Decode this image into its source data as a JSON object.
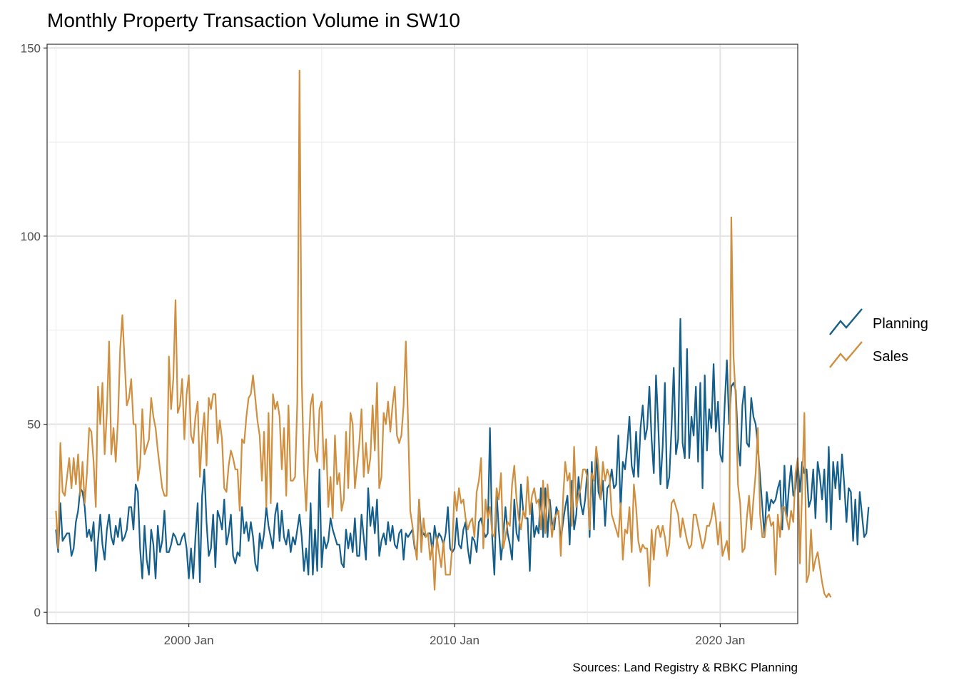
{
  "chart_data": {
    "type": "line",
    "title": "Monthly Property Transaction Volume in SW10",
    "caption": "Sources: Land Registry & RBKC Planning",
    "xlabel": "",
    "ylabel": "",
    "x_tick_labels": [
      "2000 Jan",
      "2010 Jan",
      "2020 Jan"
    ],
    "y_tick_labels": [
      "0",
      "50",
      "100",
      "150"
    ],
    "xlim": [
      "1994-09",
      "2022-12"
    ],
    "ylim": [
      -3,
      151
    ],
    "grid": true,
    "legend_position": "right",
    "colors": {
      "Planning": "#155f8c",
      "Sales": "#d08f3f"
    },
    "series": [
      {
        "name": "Planning",
        "start": "1995-01",
        "values": [
          22,
          16,
          29,
          19,
          20,
          21,
          21,
          15,
          17,
          24,
          27,
          33,
          32,
          28,
          20,
          22,
          19,
          24,
          11,
          19,
          26,
          18,
          14,
          22,
          26,
          20,
          18,
          23,
          20,
          25,
          19,
          20,
          22,
          28,
          28,
          22,
          34,
          32,
          17,
          9,
          23,
          14,
          10,
          22,
          18,
          9,
          23,
          16,
          19,
          27,
          16,
          16,
          18,
          21,
          20,
          18,
          18,
          20,
          21,
          17,
          9,
          17,
          9,
          20,
          29,
          8,
          31,
          38,
          24,
          15,
          17,
          26,
          12,
          27,
          25,
          22,
          30,
          18,
          21,
          26,
          15,
          13,
          16,
          15,
          28,
          21,
          24,
          19,
          24,
          20,
          13,
          11,
          21,
          17,
          21,
          28,
          23,
          20,
          17,
          26,
          29,
          19,
          27,
          20,
          18,
          22,
          16,
          20,
          18,
          22,
          26,
          20,
          11,
          17,
          10,
          29,
          10,
          22,
          11,
          38,
          12,
          20,
          17,
          19,
          25,
          22,
          20,
          18,
          18,
          13,
          12,
          22,
          17,
          21,
          16,
          25,
          15,
          15,
          26,
          20,
          14,
          33,
          23,
          28,
          21,
          30,
          15,
          19,
          21,
          18,
          24,
          19,
          23,
          18,
          17,
          21,
          22,
          14,
          21,
          20,
          21,
          22,
          17,
          16,
          30,
          20,
          21,
          20,
          21,
          21,
          16,
          23,
          19,
          21,
          20,
          18,
          21,
          28,
          17,
          16,
          17,
          25,
          18,
          17,
          22,
          24,
          17,
          13,
          20,
          19,
          16,
          24,
          25,
          22,
          20,
          21,
          49,
          20,
          10,
          32,
          22,
          14,
          20,
          28,
          21,
          18,
          14,
          30,
          21,
          19,
          34,
          27,
          25,
          25,
          11,
          29,
          20,
          23,
          21,
          33,
          20,
          33,
          20,
          30,
          24,
          22,
          28,
          26,
          19,
          24,
          28,
          31,
          18,
          35,
          22,
          26,
          36,
          29,
          26,
          30,
          38,
          20,
          40,
          22,
          44,
          32,
          30,
          35,
          23,
          33,
          34,
          38,
          33,
          34,
          47,
          27,
          40,
          38,
          44,
          52,
          39,
          36,
          48,
          36,
          49,
          55,
          46,
          49,
          60,
          46,
          37,
          63,
          50,
          34,
          44,
          61,
          33,
          36,
          49,
          65,
          42,
          46,
          78,
          45,
          41,
          70,
          41,
          52,
          47,
          60,
          40,
          61,
          33,
          63,
          43,
          54,
          49,
          66,
          48,
          56,
          42,
          40,
          55,
          67,
          50,
          60,
          61,
          59,
          45,
          39,
          55,
          60,
          45,
          44,
          57,
          52,
          50,
          44,
          36,
          28,
          20,
          32,
          27,
          30,
          29,
          30,
          33,
          35,
          22,
          39,
          25,
          33,
          39,
          31,
          33,
          40,
          32,
          40,
          37,
          38,
          28,
          30,
          38,
          25,
          40,
          36,
          30,
          38,
          24,
          44,
          22,
          40,
          33,
          40,
          30,
          42,
          34,
          24,
          33,
          32,
          19,
          30,
          18,
          32,
          26,
          20,
          21,
          28
        ]
      },
      {
        "name": "Sales",
        "start": "1995-01",
        "values": [
          27,
          17,
          45,
          32,
          31,
          36,
          41,
          33,
          41,
          34,
          42,
          31,
          40,
          29,
          37,
          49,
          48,
          40,
          28,
          60,
          50,
          61,
          42,
          53,
          72,
          42,
          49,
          40,
          51,
          70,
          79,
          67,
          55,
          57,
          62,
          50,
          50,
          35,
          39,
          54,
          42,
          44,
          46,
          57,
          52,
          49,
          43,
          38,
          33,
          31,
          31,
          68,
          54,
          62,
          83,
          53,
          55,
          62,
          46,
          58,
          63,
          47,
          45,
          52,
          56,
          36,
          47,
          53,
          39,
          57,
          54,
          58,
          58,
          45,
          51,
          46,
          33,
          32,
          39,
          43,
          41,
          38,
          38,
          27,
          46,
          45,
          52,
          57,
          58,
          63,
          57,
          51,
          47,
          35,
          48,
          28,
          53,
          29,
          58,
          54,
          56,
          52,
          38,
          49,
          31,
          55,
          35,
          35,
          36,
          56,
          144,
          62,
          38,
          27,
          42,
          55,
          58,
          43,
          40,
          54,
          56,
          38,
          46,
          28,
          36,
          25,
          47,
          34,
          37,
          27,
          30,
          48,
          33,
          53,
          50,
          33,
          39,
          45,
          54,
          36,
          45,
          37,
          41,
          55,
          43,
          61,
          33,
          36,
          53,
          50,
          56,
          48,
          55,
          60,
          47,
          45,
          47,
          55,
          72,
          51,
          27,
          23,
          18,
          14,
          30,
          16,
          25,
          20,
          21,
          14,
          18,
          6,
          20,
          16,
          12,
          19,
          10,
          10,
          10,
          18,
          32,
          27,
          33,
          29,
          30,
          25,
          22,
          24,
          25,
          20,
          32,
          35,
          41,
          17,
          30,
          25,
          28,
          21,
          20,
          33,
          30,
          37,
          17,
          20,
          24,
          23,
          34,
          39,
          30,
          25,
          22,
          27,
          25,
          36,
          26,
          31,
          33,
          29,
          30,
          22,
          35,
          21,
          34,
          27,
          20,
          25,
          26,
          27,
          15,
          30,
          40,
          35,
          37,
          23,
          44,
          28,
          31,
          33,
          38,
          38,
          36,
          22,
          37,
          35,
          44,
          39,
          30,
          40,
          35,
          38,
          36,
          26,
          24,
          22,
          20,
          29,
          14,
          22,
          21,
          28,
          16,
          34,
          28,
          19,
          16,
          18,
          17,
          17,
          7,
          22,
          14,
          22,
          23,
          20,
          23,
          20,
          15,
          18,
          29,
          30,
          28,
          26,
          20,
          25,
          22,
          19,
          17,
          18,
          26,
          26,
          23,
          20,
          17,
          19,
          23,
          23,
          25,
          29,
          25,
          18,
          24,
          15,
          17,
          19,
          14,
          105,
          68,
          57,
          34,
          29,
          16,
          17,
          25,
          31,
          22,
          30,
          37,
          49,
          26,
          20,
          20,
          25,
          26,
          23,
          24,
          10,
          26,
          20,
          28,
          28,
          25,
          22,
          27,
          24,
          37,
          41,
          13,
          33,
          53,
          8,
          10,
          22,
          11,
          14,
          16,
          12,
          8,
          5,
          4,
          5,
          4
        ]
      }
    ]
  }
}
